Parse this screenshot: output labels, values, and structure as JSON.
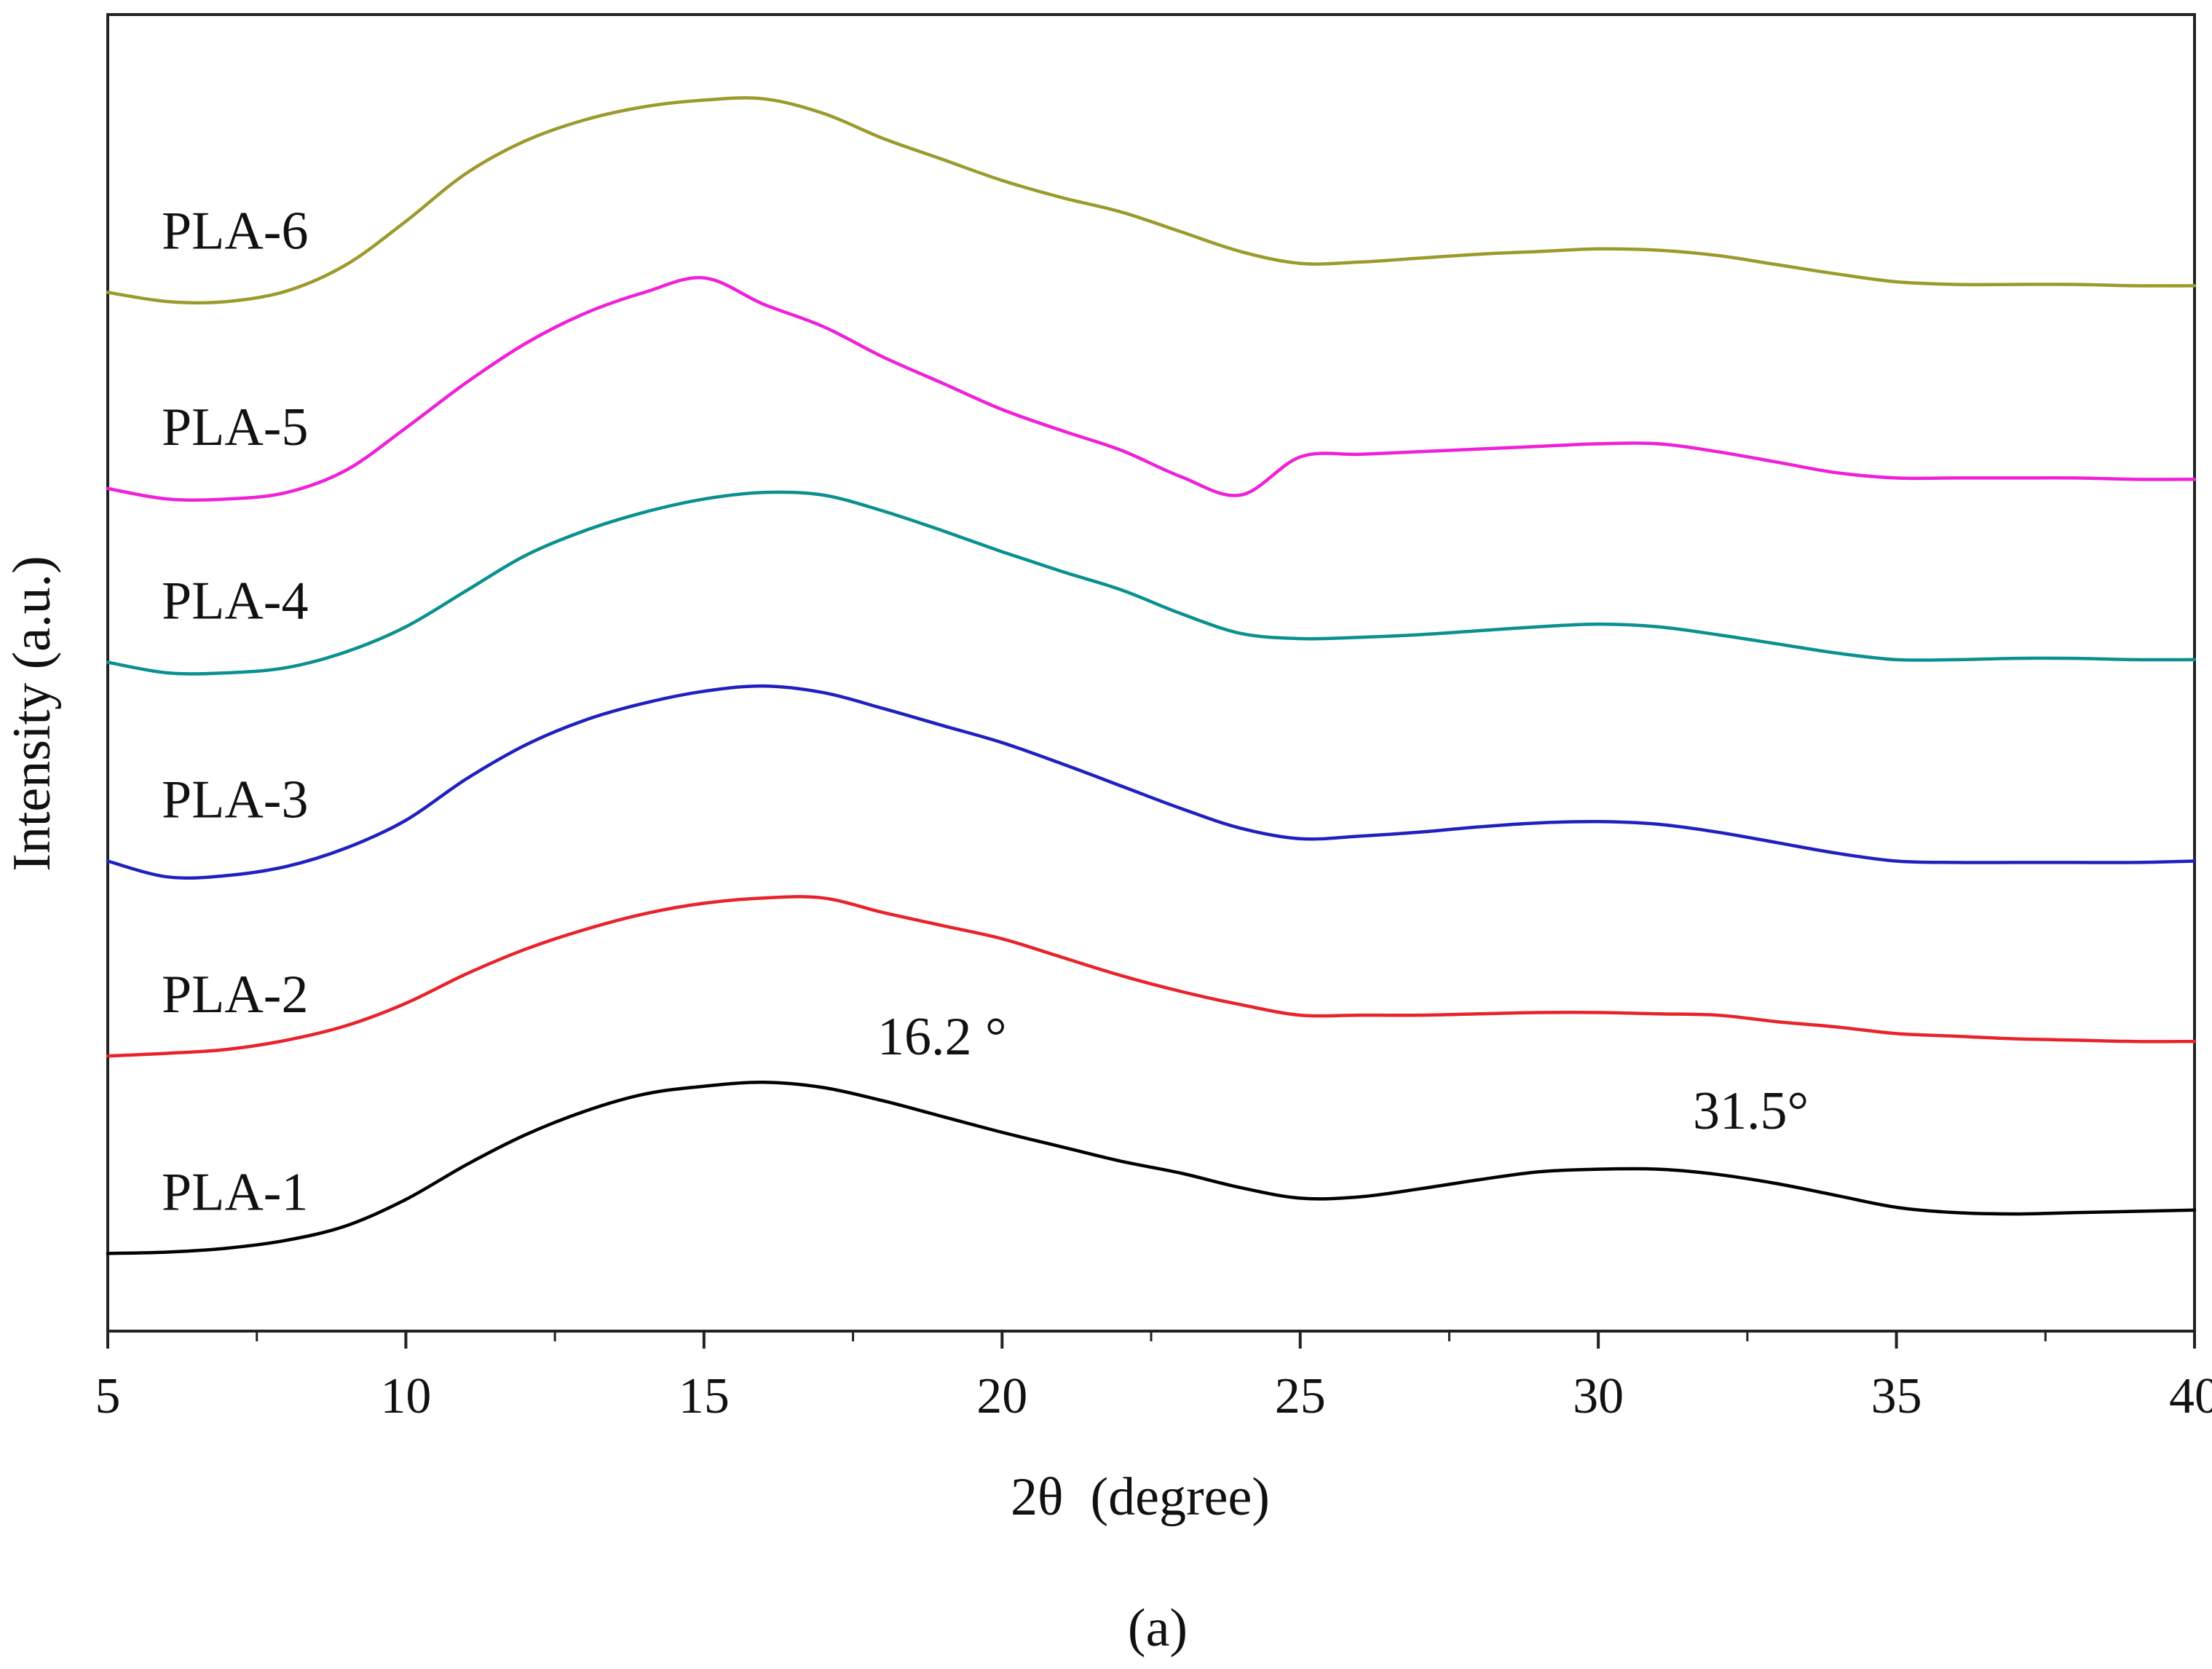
{
  "chart_data": {
    "type": "line",
    "title": "",
    "caption": "(a)",
    "xlabel": "2θ  (degree)",
    "ylabel": "Intensity (a.u.)",
    "xlim": [
      5,
      40
    ],
    "ylim": [
      0,
      1
    ],
    "x_ticks": [
      5,
      10,
      15,
      20,
      25,
      30,
      35,
      40
    ],
    "x_tick_labels": [
      "5",
      "10",
      "15",
      "20",
      "25",
      "30",
      "35",
      "40"
    ],
    "x_minor_step": 2.5,
    "y_ticks_shown": false,
    "grid": false,
    "legend": "inline labels at left",
    "x": [
      5,
      6,
      7,
      8,
      9,
      10,
      11,
      12,
      13,
      14,
      15,
      16,
      17,
      18,
      19,
      20,
      21,
      22,
      23,
      24,
      25,
      26,
      27,
      28,
      29,
      30,
      31,
      32,
      33,
      34,
      35,
      36,
      37,
      38,
      39,
      40
    ],
    "series": [
      {
        "name": "PLA-1",
        "color": "#000000",
        "values": [
          0.059,
          0.06,
          0.063,
          0.069,
          0.08,
          0.1,
          0.126,
          0.149,
          0.167,
          0.18,
          0.186,
          0.189,
          0.185,
          0.175,
          0.163,
          0.151,
          0.14,
          0.129,
          0.12,
          0.109,
          0.101,
          0.102,
          0.108,
          0.115,
          0.121,
          0.123,
          0.123,
          0.119,
          0.112,
          0.103,
          0.094,
          0.09,
          0.089,
          0.09,
          0.091,
          0.092
        ]
      },
      {
        "name": "PLA-2",
        "color": "#e8232b",
        "values": [
          0.209,
          0.211,
          0.214,
          0.221,
          0.232,
          0.249,
          0.271,
          0.29,
          0.305,
          0.317,
          0.325,
          0.329,
          0.329,
          0.318,
          0.308,
          0.298,
          0.284,
          0.27,
          0.258,
          0.248,
          0.24,
          0.24,
          0.24,
          0.241,
          0.242,
          0.242,
          0.241,
          0.24,
          0.235,
          0.231,
          0.226,
          0.224,
          0.222,
          0.221,
          0.22,
          0.22
        ]
      },
      {
        "name": "PLA-3",
        "color": "#2020c0",
        "values": [
          0.357,
          0.345,
          0.346,
          0.353,
          0.367,
          0.388,
          0.419,
          0.445,
          0.464,
          0.477,
          0.486,
          0.49,
          0.485,
          0.473,
          0.46,
          0.447,
          0.431,
          0.414,
          0.397,
          0.382,
          0.374,
          0.376,
          0.379,
          0.383,
          0.386,
          0.387,
          0.385,
          0.379,
          0.371,
          0.363,
          0.357,
          0.356,
          0.356,
          0.356,
          0.356,
          0.357
        ]
      },
      {
        "name": "PLA-4",
        "color": "#0a9090",
        "values": [
          0.508,
          0.5,
          0.5,
          0.504,
          0.516,
          0.535,
          0.562,
          0.589,
          0.608,
          0.622,
          0.632,
          0.637,
          0.635,
          0.623,
          0.608,
          0.592,
          0.577,
          0.563,
          0.545,
          0.53,
          0.526,
          0.527,
          0.529,
          0.532,
          0.535,
          0.537,
          0.535,
          0.529,
          0.522,
          0.515,
          0.51,
          0.51,
          0.511,
          0.511,
          0.51,
          0.51
        ]
      },
      {
        "name": "PLA-5",
        "color": "#f020d8",
        "values": [
          0.64,
          0.632,
          0.632,
          0.637,
          0.654,
          0.686,
          0.72,
          0.75,
          0.773,
          0.789,
          0.8,
          0.78,
          0.763,
          0.74,
          0.72,
          0.7,
          0.684,
          0.669,
          0.649,
          0.635,
          0.664,
          0.666,
          0.668,
          0.67,
          0.672,
          0.674,
          0.674,
          0.668,
          0.66,
          0.652,
          0.648,
          0.648,
          0.648,
          0.648,
          0.647,
          0.647
        ]
      },
      {
        "name": "PLA-6",
        "color": "#9c9a2c",
        "values": [
          0.789,
          0.782,
          0.782,
          0.79,
          0.81,
          0.843,
          0.879,
          0.904,
          0.92,
          0.93,
          0.935,
          0.936,
          0.925,
          0.906,
          0.89,
          0.874,
          0.861,
          0.85,
          0.835,
          0.82,
          0.811,
          0.812,
          0.815,
          0.818,
          0.82,
          0.822,
          0.821,
          0.817,
          0.81,
          0.803,
          0.797,
          0.795,
          0.795,
          0.795,
          0.794,
          0.794
        ]
      }
    ],
    "annotations": [
      {
        "text": "16.2 °",
        "x": 16.2
      },
      {
        "text": "31.5°",
        "x": 31.5
      }
    ]
  }
}
